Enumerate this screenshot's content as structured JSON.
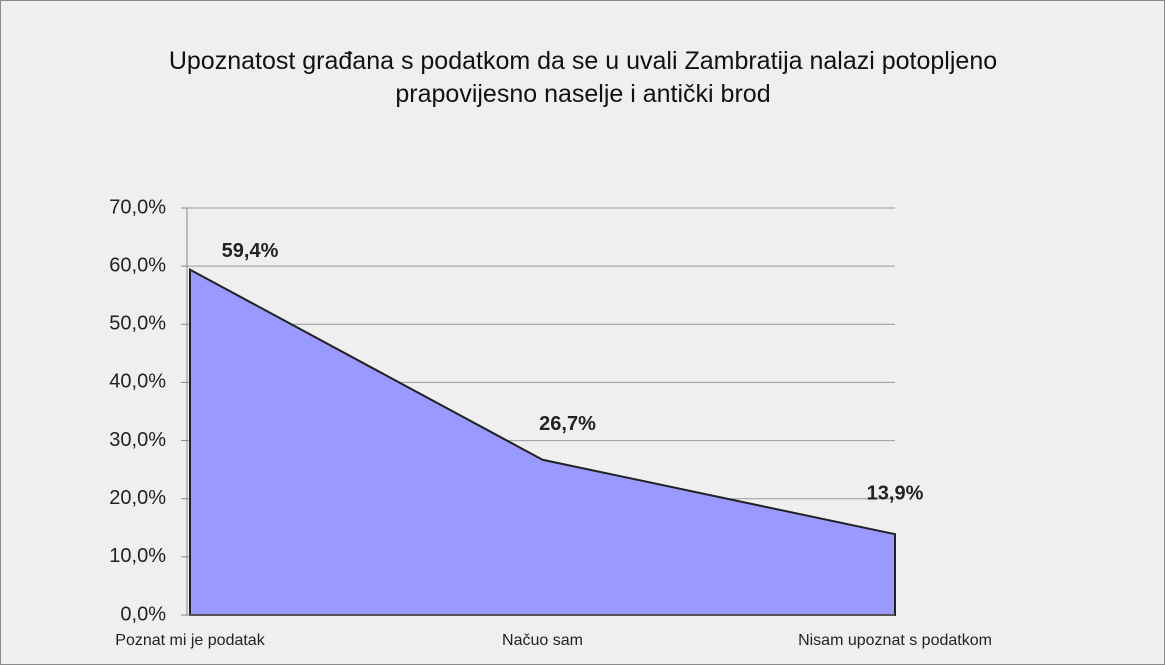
{
  "chart_data": {
    "type": "area",
    "title": "Upoznatost građana s podatkom da se u uvali Zambratija nalazi potopljeno prapovijesno naselje i antički brod",
    "categories": [
      "Poznat mi je podatak",
      "Načuo sam",
      "Nisam upoznat s podatkom"
    ],
    "values": [
      59.4,
      26.7,
      13.9
    ],
    "value_labels": [
      "59,4%",
      "26,7%",
      "13,9%"
    ],
    "color": "#9999ff",
    "ylim": [
      0,
      70
    ],
    "yticks": [
      {
        "value": 0,
        "label": "0,0%"
      },
      {
        "value": 10,
        "label": "10,0%"
      },
      {
        "value": 20,
        "label": "20,0%"
      },
      {
        "value": 30,
        "label": "30,0%"
      },
      {
        "value": 40,
        "label": "40,0%"
      },
      {
        "value": 50,
        "label": "50,0%"
      },
      {
        "value": 60,
        "label": "60,0%"
      },
      {
        "value": 70,
        "label": "70,0%"
      }
    ],
    "grid": true
  }
}
